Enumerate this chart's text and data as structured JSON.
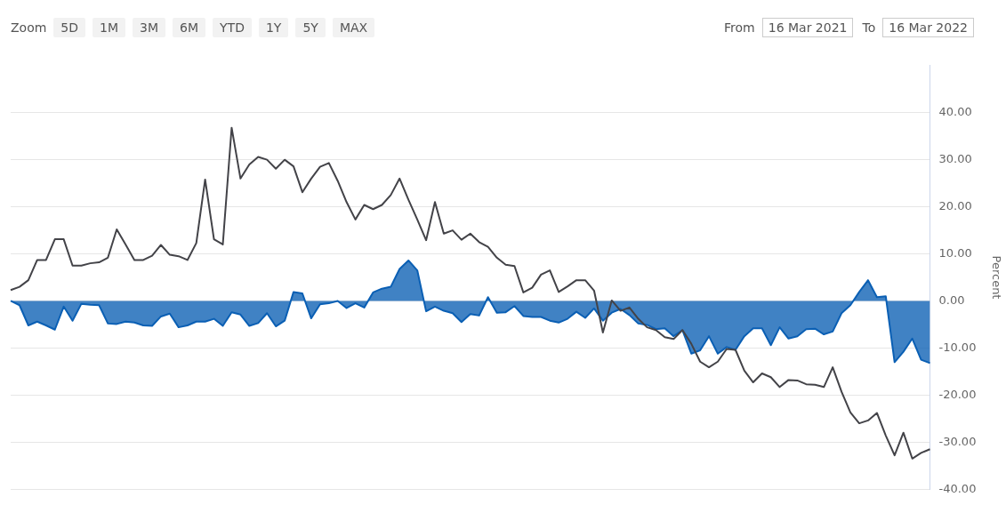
{
  "chart_data": {
    "type": "area",
    "ylabel": "Percent",
    "annotations": [
      "Zoom",
      "5D",
      "1M",
      "3M",
      "6M",
      "YTD",
      "1Y",
      "5Y",
      "MAX",
      "From",
      "16 Mar 2021",
      "To",
      "16 Mar 2022"
    ],
    "categories": [
      null,
      null,
      null,
      null,
      null,
      null,
      null,
      null,
      null,
      null,
      null,
      null,
      null,
      null,
      null,
      null,
      null,
      null,
      null,
      null,
      null,
      null,
      null,
      null,
      null,
      null,
      null,
      null,
      null,
      null,
      null,
      null,
      null,
      null,
      null,
      null,
      null,
      null,
      null,
      null,
      null,
      null,
      null,
      null,
      null,
      null,
      null,
      null,
      null,
      null,
      null,
      null,
      null,
      null,
      null,
      null,
      null,
      null,
      null,
      null,
      null,
      null,
      null,
      null,
      null,
      null,
      null,
      null,
      null,
      null,
      null,
      null,
      null,
      null,
      null,
      null,
      null,
      null,
      null,
      null,
      null,
      null,
      null,
      null,
      null,
      null,
      null,
      null,
      null,
      null,
      null,
      null,
      null,
      null,
      null,
      null,
      null,
      null,
      null,
      null,
      null,
      null,
      null,
      null,
      null
    ],
    "series": [
      {
        "color": "#0a5fb4",
        "values": [
          0,
          -0.9,
          -5.2,
          -4.4,
          -5.2,
          -6.1,
          -1.2,
          -4.2,
          -0.6,
          -0.8,
          -0.9,
          -4.8,
          -4.9,
          -4.4,
          -4.6,
          -5.2,
          -5.3,
          -3.3,
          -2.7,
          -5.6,
          -5.2,
          -4.4,
          -4.4,
          -3.8,
          -5.3,
          -2.4,
          -2.9,
          -5.3,
          -4.7,
          -2.6,
          -5.4,
          -4.2,
          1.9,
          1.6,
          -3.7,
          -0.7,
          -0.5,
          0,
          -1.5,
          -0.5,
          -1.4,
          1.8,
          2.6,
          3,
          6.8,
          8.6,
          6.5,
          -2.2,
          -1.2,
          -2.1,
          -2.6,
          -4.5,
          -2.8,
          -3.1,
          0.8,
          -2.5,
          -2.4,
          -1.1,
          -3.2,
          -3.4,
          -3.4,
          -4.2,
          -4.6,
          -3.8,
          -2.3,
          -3.6,
          -1.6,
          -4.2,
          -2.5,
          -1.7,
          -3,
          -4.8,
          -5.1,
          -6,
          -5.8,
          -7.5,
          -6.2,
          -11.2,
          -10.5,
          -7.5,
          -11.2,
          -9.8,
          -10.4,
          -7.5,
          -5.8,
          -5.8,
          -9.4,
          -5.6,
          -8,
          -7.5,
          -6,
          -5.9,
          -7.1,
          -6.5,
          -2.6,
          -0.9,
          1.9,
          4.4,
          0.8,
          1,
          -13,
          -10.8,
          -8,
          -12.5,
          -13.2
        ]
      },
      {
        "type": "line",
        "color": "#434348",
        "values": [
          2.3,
          3,
          4.4,
          8.7,
          8.7,
          13.1,
          13.1,
          7.5,
          7.5,
          8,
          8.2,
          9.2,
          15.2,
          12,
          8.7,
          8.7,
          9.6,
          11.9,
          9.8,
          9.5,
          8.7,
          12.3,
          25.8,
          13.1,
          12,
          36.8,
          26,
          29,
          30.6,
          30,
          28.1,
          30,
          28.6,
          23.1,
          26,
          28.5,
          29.3,
          25.5,
          21,
          17.3,
          20.4,
          19.5,
          20.4,
          22.5,
          26,
          21.5,
          17.3,
          12.9,
          21,
          14.3,
          15,
          13,
          14.3,
          12.5,
          11.5,
          9.2,
          7.7,
          7.4,
          1.8,
          2.8,
          5.6,
          6.5,
          1.9,
          3.1,
          4.4,
          4.4,
          2.2,
          -6.7,
          0.1,
          -2.1,
          -1.4,
          -3.8,
          -5.6,
          -6.2,
          -7.7,
          -8.1,
          -6.2,
          -9.1,
          -12.9,
          -14.1,
          -12.9,
          -10.2,
          -10.4,
          -14.8,
          -17.3,
          -15.4,
          -16.2,
          -18.3,
          -16.8,
          -16.9,
          -17.7,
          -17.8,
          -18.3,
          -14.1,
          -19.3,
          -23.7,
          -26,
          -25.4,
          -23.8,
          -28.6,
          -32.8,
          -28,
          -33.5,
          -32.3,
          -31.5
        ]
      }
    ],
    "ylim": [
      -40,
      50
    ],
    "yticks": [
      {
        "value": -40,
        "label": "-40.00"
      },
      {
        "value": -30,
        "label": "-30.00"
      },
      {
        "value": -20,
        "label": "-20.00"
      },
      {
        "value": -10,
        "label": "-10.00"
      },
      {
        "value": 0,
        "label": "0.00"
      },
      {
        "value": 10,
        "label": "10.00"
      },
      {
        "value": 20,
        "label": "20.00"
      },
      {
        "value": 30,
        "label": "30.00"
      },
      {
        "value": 40,
        "label": "40.00"
      }
    ],
    "grid": "y",
    "tick_labels": "y",
    "marker": "none"
  }
}
